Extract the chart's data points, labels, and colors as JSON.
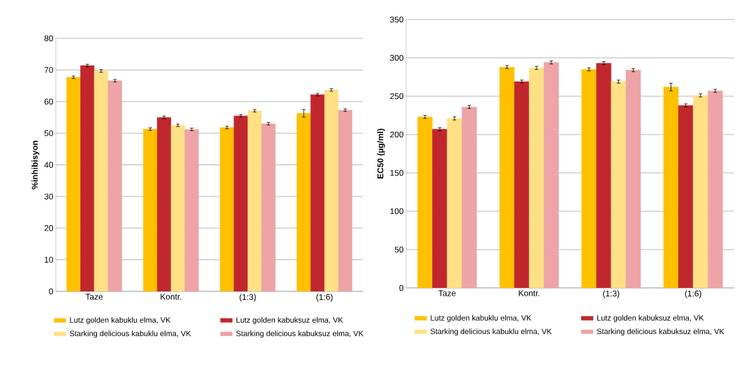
{
  "chart_data": [
    {
      "type": "bar",
      "ylabel": "%inhibisyon",
      "categories": [
        "Taze",
        "Kontr.",
        "(1:3)",
        "(1:6)"
      ],
      "ylim": [
        0,
        80
      ],
      "yticks": [
        0,
        10,
        20,
        30,
        40,
        50,
        60,
        70,
        80
      ],
      "grid": "y",
      "legend": "bottom",
      "series": [
        {
          "name": "Lutz golden kabuklu elma, VK",
          "color": "#ffc000",
          "values": [
            67.7,
            51.3,
            51.8,
            56.3
          ],
          "errors": [
            0.4,
            0.4,
            0.4,
            1.2
          ]
        },
        {
          "name": "Lutz golden kabuksuz elma, VK",
          "color": "#c0272d",
          "values": [
            71.4,
            55.0,
            55.5,
            62.2
          ],
          "errors": [
            0.4,
            0.4,
            0.4,
            0.4
          ]
        },
        {
          "name": "Starking delicious kabuklu elma, VK",
          "color": "#ffe085",
          "values": [
            69.7,
            52.5,
            57.1,
            63.7
          ],
          "errors": [
            0.4,
            0.4,
            0.4,
            0.4
          ]
        },
        {
          "name": "Starking delicious kabuksuz elma, VK",
          "color": "#eea3a6",
          "values": [
            66.6,
            51.2,
            53.0,
            57.3
          ],
          "errors": [
            0.4,
            0.4,
            0.4,
            0.4
          ]
        }
      ]
    },
    {
      "type": "bar",
      "ylabel": "EC50 (µg/ml)",
      "categories": [
        "Taze",
        "Kontr.",
        "(1:3)",
        "(1:6)"
      ],
      "ylim": [
        0,
        350
      ],
      "yticks": [
        0,
        50,
        100,
        150,
        200,
        250,
        300,
        350
      ],
      "grid": "y",
      "legend": "bottom",
      "series": [
        {
          "name": "Lutz golden kabuklu elma, VK",
          "color": "#ffc000",
          "values": [
            223,
            288,
            285,
            262
          ],
          "errors": [
            2,
            2,
            2,
            5
          ]
        },
        {
          "name": "Lutz golden kabuksuz elma, VK",
          "color": "#c0272d",
          "values": [
            207,
            269,
            293,
            238
          ],
          "errors": [
            2,
            2,
            2,
            2
          ]
        },
        {
          "name": "Starking delicious kabuklu elma, VK",
          "color": "#ffe085",
          "values": [
            221,
            287,
            269,
            251
          ],
          "errors": [
            2,
            2,
            2,
            2
          ]
        },
        {
          "name": "Starking delicious kabuksuz elma, VK",
          "color": "#eea3a6",
          "values": [
            236,
            294,
            284,
            257
          ],
          "errors": [
            2,
            2,
            2,
            2
          ]
        }
      ]
    }
  ]
}
